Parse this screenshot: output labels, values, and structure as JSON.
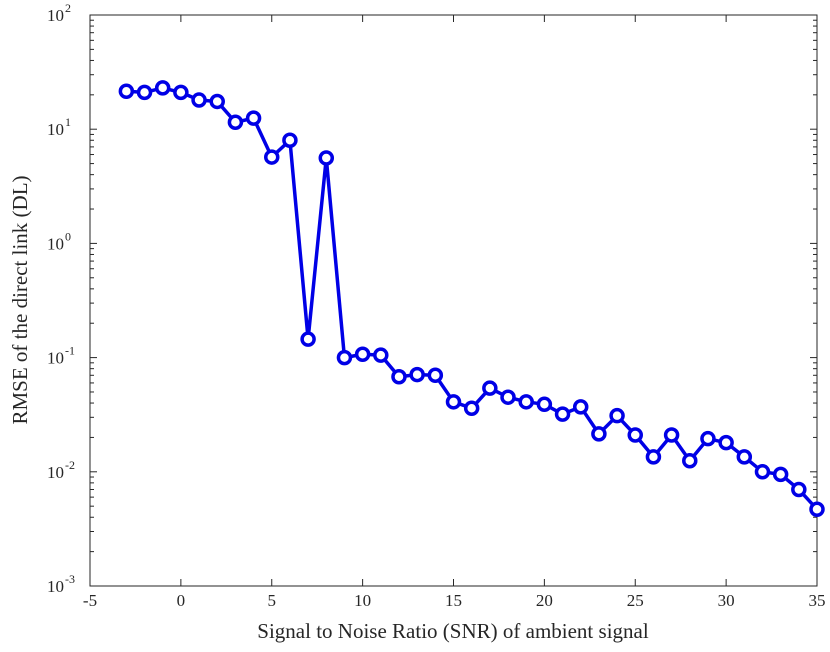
{
  "chart_data": {
    "type": "line",
    "xlabel": "Signal to Noise Ratio (SNR) of ambient signal",
    "ylabel": "RMSE of the direct link (DL)",
    "xlim": [
      -5,
      35
    ],
    "ylim": [
      0.001,
      100
    ],
    "yscale": "log",
    "grid": false,
    "x_ticks": [
      "-5",
      "0",
      "5",
      "10",
      "15",
      "20",
      "25",
      "30",
      "35"
    ],
    "y_ticks": [
      {
        "base": "10",
        "exp": "-3"
      },
      {
        "base": "10",
        "exp": "-2"
      },
      {
        "base": "10",
        "exp": "-1"
      },
      {
        "base": "10",
        "exp": "0"
      },
      {
        "base": "10",
        "exp": "1"
      },
      {
        "base": "10",
        "exp": "2"
      }
    ],
    "series": [
      {
        "color": "#0000e6",
        "marker": "circle",
        "x": [
          -3,
          -2,
          -1,
          0,
          1,
          2,
          3,
          4,
          5,
          6,
          7,
          8,
          9,
          10,
          11,
          12,
          13,
          14,
          15,
          16,
          17,
          18,
          19,
          20,
          21,
          22,
          23,
          24,
          25,
          26,
          27,
          28,
          29,
          30,
          31,
          32,
          33,
          34,
          35
        ],
        "y": [
          21.5,
          21,
          23,
          21,
          18,
          17.5,
          11.5,
          12.5,
          5.7,
          8,
          0.145,
          5.6,
          0.1,
          0.107,
          0.105,
          0.068,
          0.071,
          0.07,
          0.041,
          0.036,
          0.054,
          0.045,
          0.041,
          0.039,
          0.032,
          0.037,
          0.0215,
          0.031,
          0.021,
          0.0135,
          0.021,
          0.0125,
          0.0195,
          0.018,
          0.0135,
          0.01,
          0.0095,
          0.007,
          0.0047
        ]
      }
    ]
  }
}
